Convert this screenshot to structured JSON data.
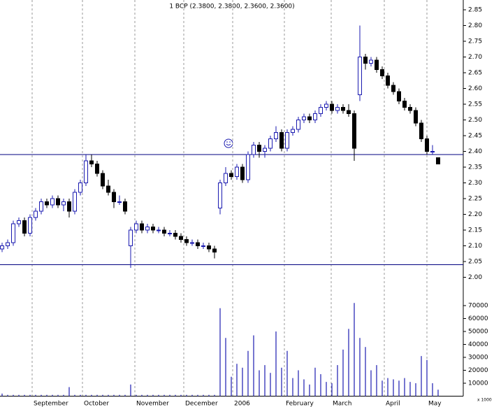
{
  "chart_data": {
    "type": "candlestick",
    "title": "1 BCP (2.3800, 2.3800, 2.3600, 2.3600)",
    "up_color": "#1a1ab0",
    "down_color": "#000000",
    "hline_color": "#000080",
    "candles": [
      [
        2.09,
        2.11,
        2.08,
        2.1
      ],
      [
        2.1,
        2.12,
        2.09,
        2.11
      ],
      [
        2.11,
        2.18,
        2.1,
        2.17
      ],
      [
        2.17,
        2.19,
        2.16,
        2.18
      ],
      [
        2.18,
        2.19,
        2.13,
        2.14
      ],
      [
        2.14,
        2.2,
        2.13,
        2.19
      ],
      [
        2.19,
        2.22,
        2.18,
        2.21
      ],
      [
        2.21,
        2.25,
        2.2,
        2.24
      ],
      [
        2.24,
        2.25,
        2.22,
        2.23
      ],
      [
        2.23,
        2.26,
        2.22,
        2.25
      ],
      [
        2.25,
        2.26,
        2.22,
        2.23
      ],
      [
        2.23,
        2.25,
        2.21,
        2.24
      ],
      [
        2.24,
        2.25,
        2.19,
        2.21
      ],
      [
        2.21,
        2.28,
        2.2,
        2.27
      ],
      [
        2.27,
        2.31,
        2.26,
        2.3
      ],
      [
        2.3,
        2.39,
        2.29,
        2.37
      ],
      [
        2.37,
        2.39,
        2.35,
        2.36
      ],
      [
        2.36,
        2.37,
        2.32,
        2.33
      ],
      [
        2.33,
        2.34,
        2.28,
        2.29
      ],
      [
        2.29,
        2.31,
        2.26,
        2.27
      ],
      [
        2.27,
        2.28,
        2.22,
        2.24
      ],
      [
        2.24,
        2.26,
        2.23,
        2.24
      ],
      [
        2.24,
        2.25,
        2.2,
        2.21
      ],
      [
        2.1,
        2.16,
        2.03,
        2.15
      ],
      [
        2.15,
        2.18,
        2.14,
        2.17
      ],
      [
        2.17,
        2.18,
        2.14,
        2.15
      ],
      [
        2.15,
        2.17,
        2.14,
        2.16
      ],
      [
        2.16,
        2.17,
        2.14,
        2.15
      ],
      [
        2.15,
        2.16,
        2.14,
        2.15
      ],
      [
        2.15,
        2.16,
        2.13,
        2.14
      ],
      [
        2.14,
        2.15,
        2.13,
        2.14
      ],
      [
        2.14,
        2.15,
        2.12,
        2.13
      ],
      [
        2.13,
        2.14,
        2.11,
        2.12
      ],
      [
        2.12,
        2.13,
        2.1,
        2.11
      ],
      [
        2.11,
        2.12,
        2.1,
        2.11
      ],
      [
        2.11,
        2.12,
        2.09,
        2.1
      ],
      [
        2.1,
        2.11,
        2.09,
        2.1
      ],
      [
        2.1,
        2.11,
        2.08,
        2.09
      ],
      [
        2.09,
        2.1,
        2.06,
        2.08
      ],
      [
        2.22,
        2.31,
        2.2,
        2.3
      ],
      [
        2.3,
        2.35,
        2.29,
        2.33
      ],
      [
        2.33,
        2.34,
        2.31,
        2.32
      ],
      [
        2.32,
        2.36,
        2.31,
        2.35
      ],
      [
        2.35,
        2.36,
        2.3,
        2.31
      ],
      [
        2.31,
        2.4,
        2.3,
        2.39
      ],
      [
        2.39,
        2.43,
        2.38,
        2.42
      ],
      [
        2.42,
        2.43,
        2.38,
        2.4
      ],
      [
        2.4,
        2.42,
        2.38,
        2.41
      ],
      [
        2.41,
        2.45,
        2.4,
        2.44
      ],
      [
        2.44,
        2.48,
        2.43,
        2.46
      ],
      [
        2.46,
        2.47,
        2.4,
        2.41
      ],
      [
        2.41,
        2.47,
        2.4,
        2.46
      ],
      [
        2.46,
        2.48,
        2.45,
        2.47
      ],
      [
        2.47,
        2.51,
        2.46,
        2.5
      ],
      [
        2.5,
        2.52,
        2.49,
        2.51
      ],
      [
        2.51,
        2.52,
        2.49,
        2.5
      ],
      [
        2.5,
        2.53,
        2.49,
        2.52
      ],
      [
        2.52,
        2.55,
        2.51,
        2.54
      ],
      [
        2.54,
        2.56,
        2.53,
        2.55
      ],
      [
        2.55,
        2.56,
        2.52,
        2.53
      ],
      [
        2.53,
        2.55,
        2.52,
        2.54
      ],
      [
        2.54,
        2.55,
        2.52,
        2.53
      ],
      [
        2.53,
        2.55,
        2.51,
        2.52
      ],
      [
        2.52,
        2.53,
        2.37,
        2.41
      ],
      [
        2.58,
        2.8,
        2.56,
        2.7
      ],
      [
        2.7,
        2.71,
        2.66,
        2.68
      ],
      [
        2.68,
        2.7,
        2.67,
        2.69
      ],
      [
        2.69,
        2.7,
        2.65,
        2.66
      ],
      [
        2.66,
        2.67,
        2.63,
        2.64
      ],
      [
        2.64,
        2.65,
        2.6,
        2.61
      ],
      [
        2.61,
        2.62,
        2.58,
        2.59
      ],
      [
        2.59,
        2.6,
        2.55,
        2.56
      ],
      [
        2.56,
        2.57,
        2.53,
        2.54
      ],
      [
        2.54,
        2.55,
        2.52,
        2.53
      ],
      [
        2.53,
        2.54,
        2.48,
        2.49
      ],
      [
        2.49,
        2.5,
        2.43,
        2.44
      ],
      [
        2.44,
        2.45,
        2.39,
        2.4
      ],
      [
        2.4,
        2.42,
        2.39,
        2.4
      ],
      [
        2.38,
        2.38,
        2.36,
        2.36
      ]
    ],
    "xlim": [
      -0.375,
      82.5
    ],
    "xticks": [
      {
        "value": 5.375,
        "label": "September"
      },
      {
        "value": 14.375,
        "label": "October"
      },
      {
        "value": 23.75,
        "label": "November"
      },
      {
        "value": 32.5,
        "label": "December"
      },
      {
        "value": 41.25,
        "label": "2006"
      },
      {
        "value": 50.5,
        "label": "February"
      },
      {
        "value": 58.875,
        "label": "March"
      },
      {
        "value": 68.375,
        "label": "April"
      },
      {
        "value": 76,
        "label": "May"
      }
    ],
    "ylim": [
      1.98,
      2.88
    ],
    "yticks": [
      {
        "value": 2,
        "label": "2.00"
      },
      2.05,
      {
        "value": 2.1,
        "label": "2.10"
      },
      2.15,
      {
        "value": 2.2,
        "label": "2.20"
      },
      2.25,
      {
        "value": 2.3,
        "label": "2.30"
      },
      2.35,
      {
        "value": 2.4,
        "label": "2.40"
      },
      2.45,
      {
        "value": 2.5,
        "label": "2.50"
      },
      2.55,
      {
        "value": 2.6,
        "label": "2.60"
      },
      2.65,
      {
        "value": 2.7,
        "label": "2.70"
      },
      2.75,
      {
        "value": 2.8,
        "label": "2.80"
      },
      2.85
    ],
    "hlines": [
      2.39,
      2.04
    ],
    "volume": {
      "color": "#1a1ab0",
      "unit_label": "x 1000",
      "values": [
        2000,
        1000,
        1000,
        1000,
        1000,
        1000,
        1000,
        1000,
        1000,
        1000,
        1000,
        1000,
        7000,
        1000,
        1000,
        1000,
        1000,
        1000,
        1000,
        1000,
        1000,
        1000,
        1000,
        9000,
        1000,
        1000,
        1000,
        1000,
        1000,
        1000,
        1000,
        1000,
        1000,
        1000,
        1000,
        1000,
        1000,
        1000,
        1000,
        68000,
        45000,
        15000,
        25000,
        22000,
        35000,
        47000,
        20000,
        24000,
        18000,
        50000,
        22000,
        35000,
        14000,
        20000,
        13000,
        9000,
        22000,
        17000,
        11000,
        10000,
        24000,
        36000,
        52000,
        72000,
        45000,
        38000,
        20000,
        24000,
        12000,
        14000,
        13000,
        12000,
        14000,
        11000,
        10000,
        31000,
        28000,
        10000,
        5000
      ],
      "ylim": [
        0,
        75000
      ],
      "yticks": [
        10000,
        20000,
        30000,
        40000,
        50000,
        60000,
        70000
      ]
    }
  }
}
